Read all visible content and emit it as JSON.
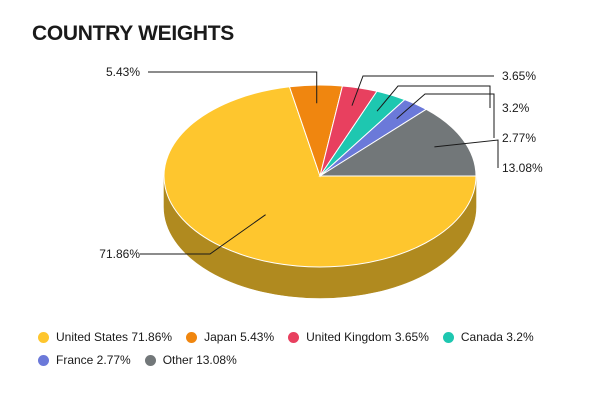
{
  "chart_data": {
    "type": "pie",
    "title": "COUNTRY WEIGHTS",
    "slices": [
      {
        "label": "United States",
        "value": 71.86,
        "display": "71.86%",
        "legend": "United States 71.86%",
        "color": "#fec62e",
        "side": "#b08a1f"
      },
      {
        "label": "Japan",
        "value": 5.43,
        "display": "5.43%",
        "legend": "Japan 5.43%",
        "color": "#f0860f",
        "side": "#a55d0a"
      },
      {
        "label": "United Kingdom",
        "value": 3.65,
        "display": "3.65%",
        "legend": "United Kingdom 3.65%",
        "color": "#e8405f",
        "side": "#9e2c42"
      },
      {
        "label": "Canada",
        "value": 3.2,
        "display": "3.2%",
        "legend": "Canada 3.2%",
        "color": "#1ec7b0",
        "side": "#148a7a"
      },
      {
        "label": "France",
        "value": 2.77,
        "display": "2.77%",
        "legend": "France 2.77%",
        "color": "#6b79d9",
        "side": "#4a5497"
      },
      {
        "label": "Other",
        "value": 13.08,
        "display": "13.08%",
        "legend": "Other 13.08%",
        "color": "#727779",
        "side": "#4f5354"
      }
    ],
    "legend_position": "bottom"
  }
}
